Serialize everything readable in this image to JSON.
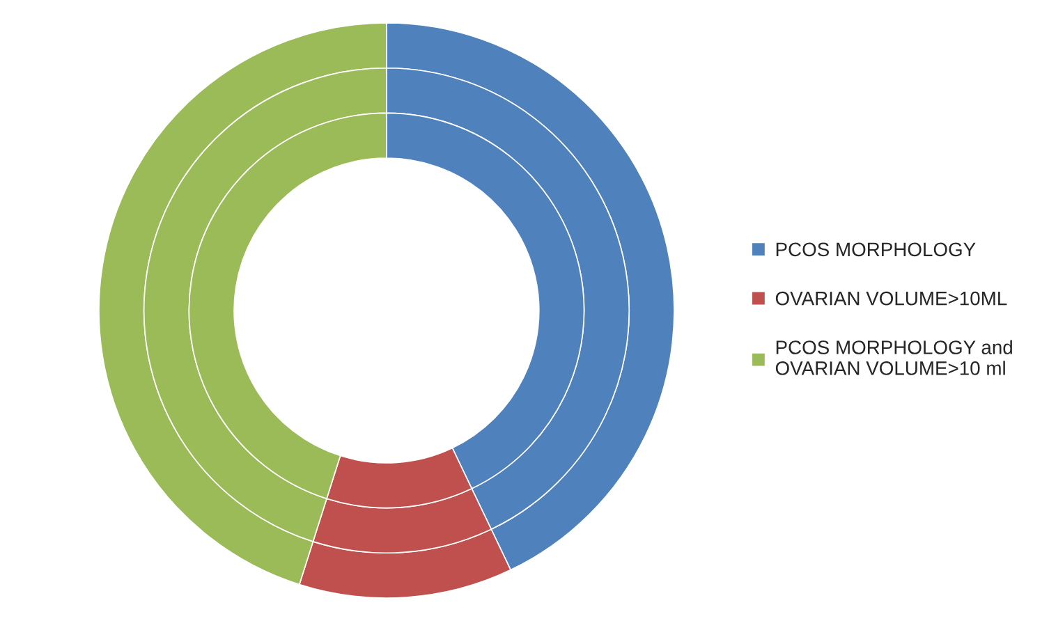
{
  "chart_data": {
    "type": "donut",
    "categories": [
      "PCOS MORPHOLOGY",
      "OVARIAN VOLUME>10ML",
      "PCOS MORPHOLOGY and\nOVARIAN VOLUME>10 ml"
    ],
    "colors": [
      "#4f81bd",
      "#c0504d",
      "#9bbb59"
    ],
    "series": [
      {
        "values": [
          42.9,
          12.0,
          45.1
        ]
      },
      {
        "values": [
          42.9,
          12.0,
          45.1
        ]
      },
      {
        "values": [
          42.9,
          12.0,
          45.1
        ]
      }
    ],
    "legend": "right"
  }
}
